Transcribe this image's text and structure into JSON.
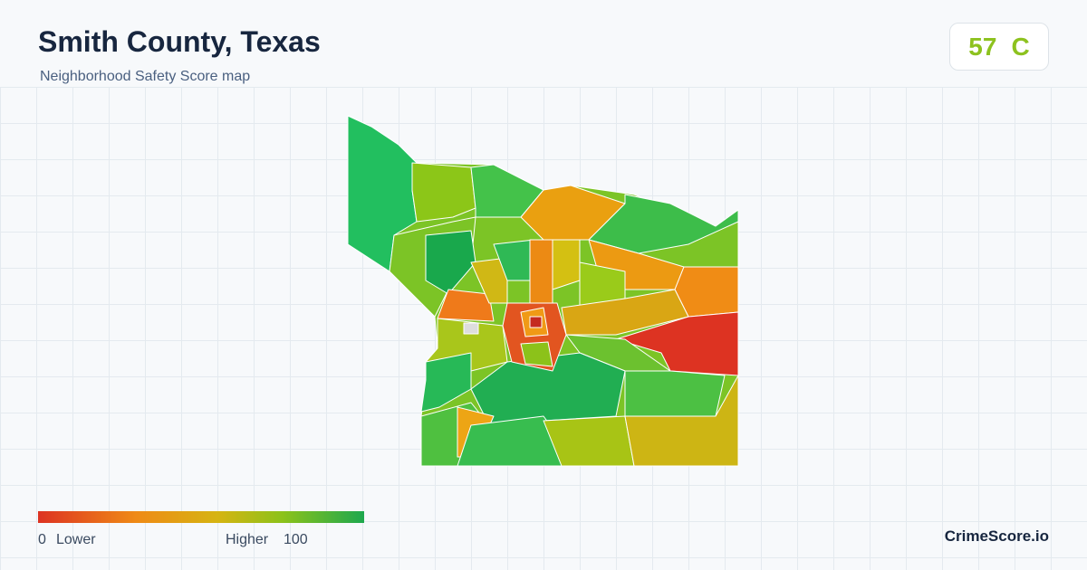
{
  "header": {
    "title": "Smith County, Texas",
    "subtitle": "Neighborhood Safety Score map"
  },
  "score": {
    "value": 57,
    "grade": "C"
  },
  "legend": {
    "min": 0,
    "min_label": "Lower",
    "max_label": "Higher",
    "max": 100
  },
  "brand": "CrimeScore.io"
}
